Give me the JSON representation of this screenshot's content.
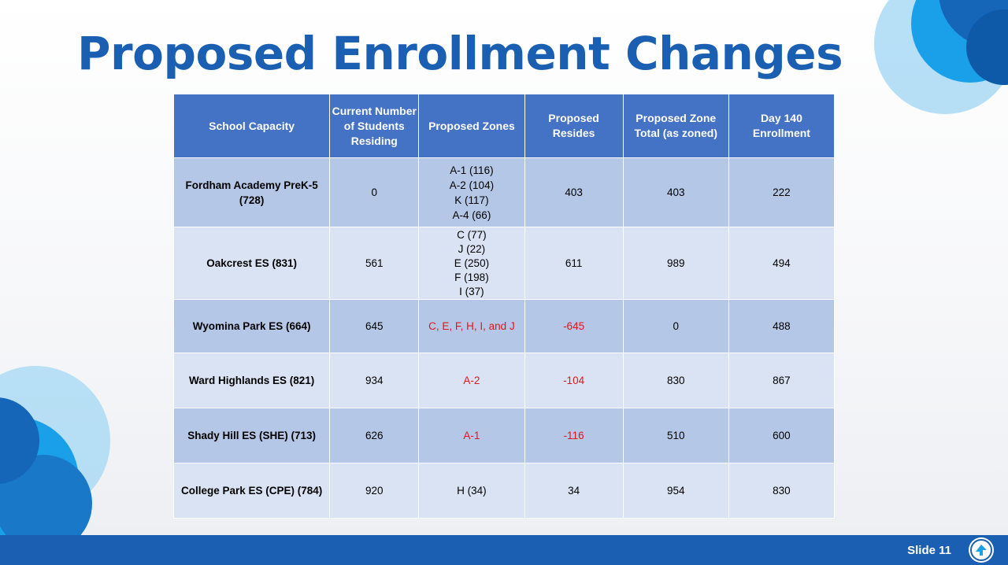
{
  "slide": {
    "title": "Proposed Enrollment Changes",
    "slide_number": "Slide 11"
  },
  "table": {
    "headers": {
      "school_capacity": "School Capacity",
      "current_students": "Current Number of Students Residing",
      "proposed_zones": "Proposed Zones",
      "proposed_resides": "Proposed Resides",
      "proposed_zone_total": "Proposed Zone Total (as zoned)",
      "day140_enrollment": "Day 140 Enrollment"
    },
    "rows": [
      {
        "school": "Fordham Academy PreK-5 (728)",
        "current": "0",
        "zones": [
          "A-1 (116)",
          "A-2 (104)",
          "K (117)",
          "A-4 (66)"
        ],
        "resides": "403",
        "zone_total": "403",
        "day140": "222"
      },
      {
        "school": "Oakcrest ES (831)",
        "current": "561",
        "zones": [
          "C (77)",
          "J (22)",
          "E (250)",
          "F (198)",
          "I (37)"
        ],
        "resides": "611",
        "zone_total": "989",
        "day140": "494"
      },
      {
        "school": "Wyomina Park ES (664)",
        "current": "645",
        "zones": [
          "C, E, F, H, I, and J"
        ],
        "resides": "-645",
        "zone_total": "0",
        "day140": "488"
      },
      {
        "school": "Ward Highlands ES (821)",
        "current": "934",
        "zones": [
          "A-2"
        ],
        "resides": "-104",
        "zone_total": "830",
        "day140": "867"
      },
      {
        "school": "Shady Hill ES (SHE) (713)",
        "current": "626",
        "zones": [
          "A-1"
        ],
        "resides": "-116",
        "zone_total": "510",
        "day140": "600"
      },
      {
        "school": "College Park ES (CPE) (784)",
        "current": "920",
        "zones": [
          "H (34)"
        ],
        "resides": "34",
        "zone_total": "954",
        "day140": "830"
      }
    ]
  },
  "colors": {
    "title": "#1b5fb3",
    "header_fill": "#4472c4",
    "row_dark": "#b4c7e7",
    "row_light": "#dae3f3",
    "negative_text": "#e0161b",
    "footer_bar": "#1b5fb3"
  },
  "icons": {
    "logo": "district-logo-icon",
    "decor_top_right": "blue-circles-decoration",
    "decor_bottom_left": "blue-circles-decoration"
  }
}
